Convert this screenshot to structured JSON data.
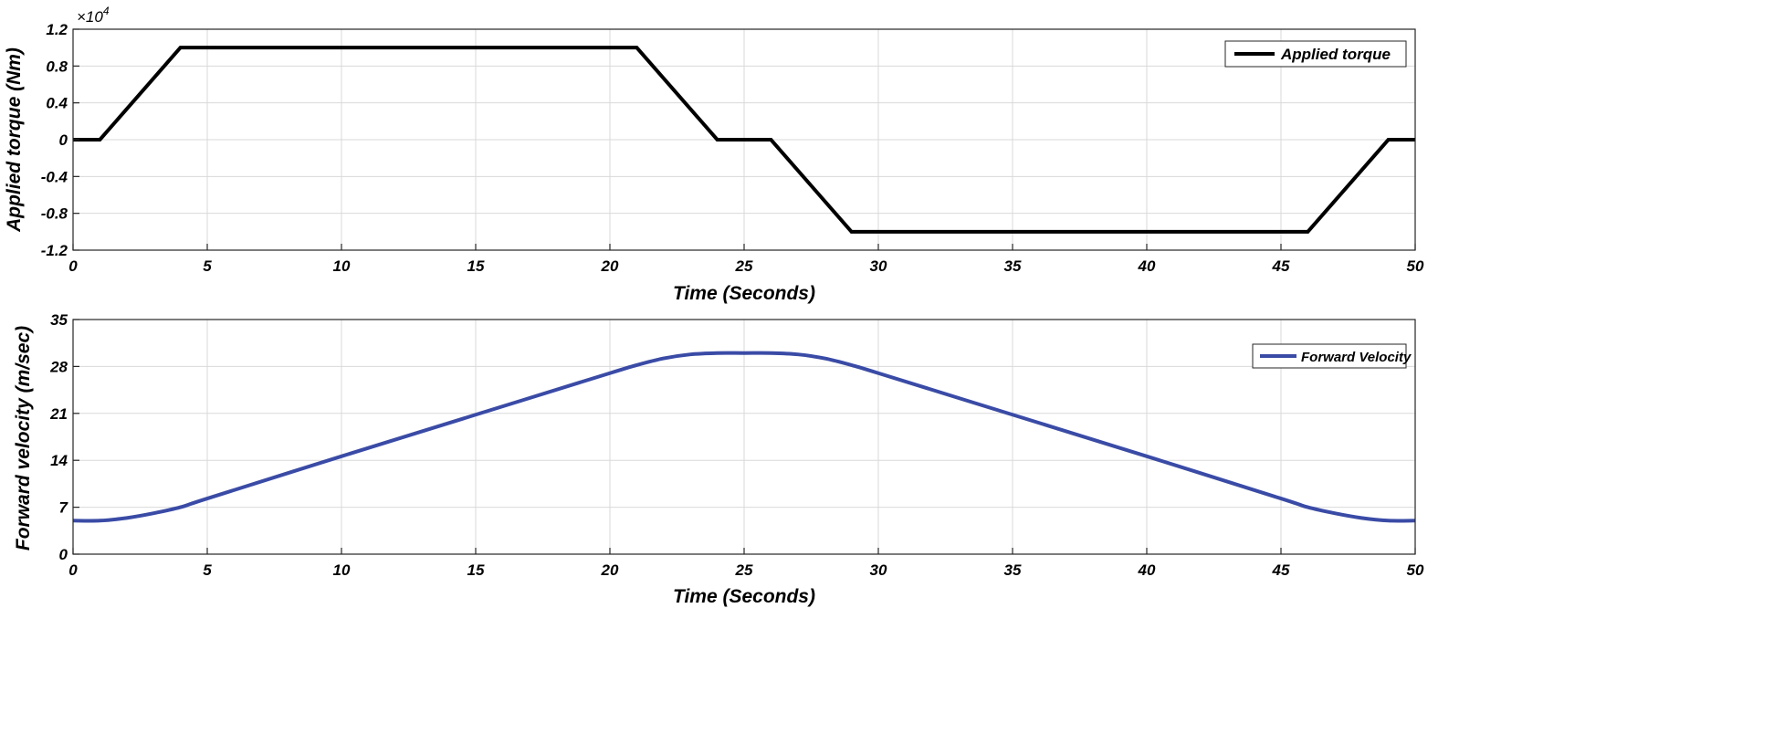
{
  "chart_data": [
    {
      "type": "line",
      "xlabel": "Time (Seconds)",
      "ylabel": "Applied torque (Nm)",
      "y_exponent_label": "×10",
      "y_exponent_power": "4",
      "xlim": [
        0,
        50
      ],
      "ylim": [
        -1.2,
        1.2
      ],
      "xticks": [
        0,
        5,
        10,
        15,
        20,
        25,
        30,
        35,
        40,
        45,
        50
      ],
      "yticks": [
        -1.2,
        -0.8,
        -0.4,
        0,
        0.4,
        0.8,
        1.2
      ],
      "ytick_labels": [
        "-1.2",
        "-0.8",
        "-0.4",
        "0",
        "0.4",
        "0.8",
        "1.2"
      ],
      "grid": true,
      "legend_position": "top-right",
      "series": [
        {
          "name": "Applied torque",
          "color": "#000000",
          "x": [
            0,
            1,
            4,
            21,
            24,
            26,
            29,
            46,
            49,
            50
          ],
          "y": [
            0,
            0,
            1.0,
            1.0,
            0,
            0,
            -1.0,
            -1.0,
            0,
            0
          ]
        }
      ]
    },
    {
      "type": "line",
      "xlabel": "Time (Seconds)",
      "ylabel": "Forward velocity (m/sec)",
      "xlim": [
        0,
        50
      ],
      "ylim": [
        0,
        35
      ],
      "xticks": [
        0,
        5,
        10,
        15,
        20,
        25,
        30,
        35,
        40,
        45,
        50
      ],
      "yticks": [
        0,
        7,
        14,
        21,
        28,
        35
      ],
      "ytick_labels": [
        "0",
        "7",
        "14",
        "21",
        "28",
        "35"
      ],
      "grid": true,
      "legend_position": "top-right",
      "series": [
        {
          "name": "Forward Velocity",
          "color": "#3a4ba6",
          "x": [
            0,
            1,
            2,
            3,
            4,
            5,
            10,
            15,
            20,
            21,
            22,
            23,
            24,
            25,
            26,
            27,
            28,
            29,
            30,
            35,
            40,
            45,
            46,
            47,
            48,
            49,
            50
          ],
          "y": [
            5,
            5,
            5.4,
            6.1,
            7.0,
            8.3,
            14.6,
            20.8,
            27.0,
            28.2,
            29.2,
            29.8,
            30.0,
            30.0,
            30.0,
            29.8,
            29.2,
            28.2,
            27.0,
            20.8,
            14.6,
            8.3,
            7.0,
            6.1,
            5.4,
            5,
            5
          ]
        }
      ]
    }
  ]
}
